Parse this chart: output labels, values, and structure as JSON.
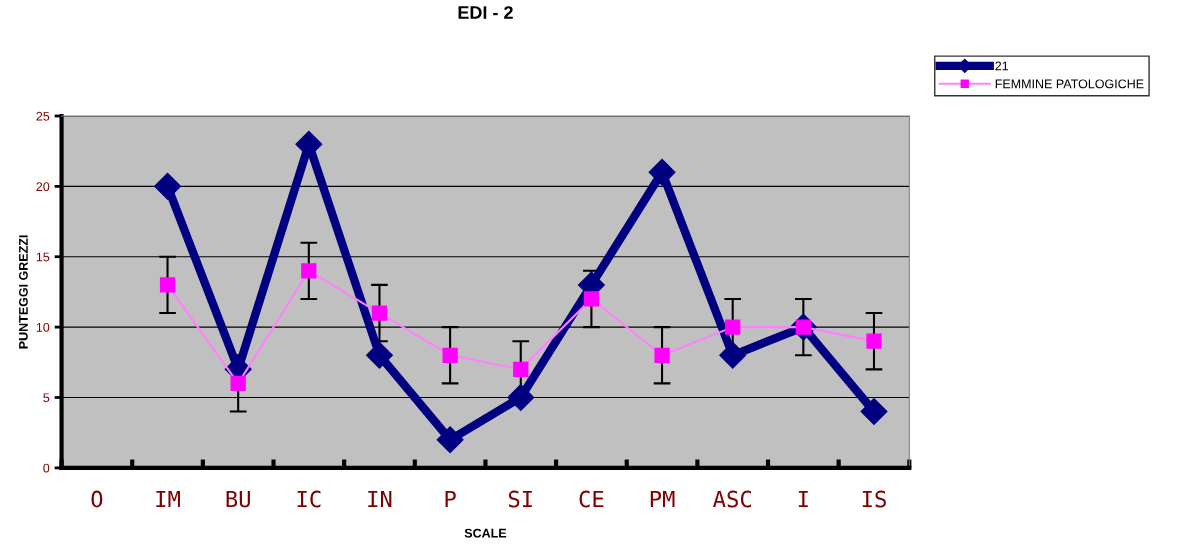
{
  "chart_data": {
    "type": "line",
    "title": "EDI - 2",
    "xlabel": "SCALE",
    "ylabel": "PUNTEGGI GREZZI",
    "categories": [
      "O",
      "IM",
      "BU",
      "IC",
      "IN",
      "P",
      "SI",
      "CE",
      "PM",
      "ASC",
      "I",
      "IS"
    ],
    "series": [
      {
        "name": "21",
        "color": "#000080",
        "marker": "diamond",
        "values": [
          null,
          20,
          7,
          23,
          8,
          2,
          5,
          13,
          21,
          8,
          10,
          4
        ]
      },
      {
        "name": "FEMMINE PATOLOGICHE",
        "color": "#ff00ff",
        "marker": "square",
        "values": [
          null,
          13,
          6,
          14,
          11,
          8,
          7,
          12,
          8,
          10,
          10,
          9
        ],
        "errors": [
          null,
          2,
          2,
          2,
          2,
          2,
          2,
          2,
          2,
          2,
          2,
          2
        ]
      }
    ],
    "ylim": [
      0,
      25
    ],
    "yticks": [
      0,
      5,
      10,
      15,
      20,
      25
    ],
    "grid": "y",
    "legend": "top right"
  }
}
